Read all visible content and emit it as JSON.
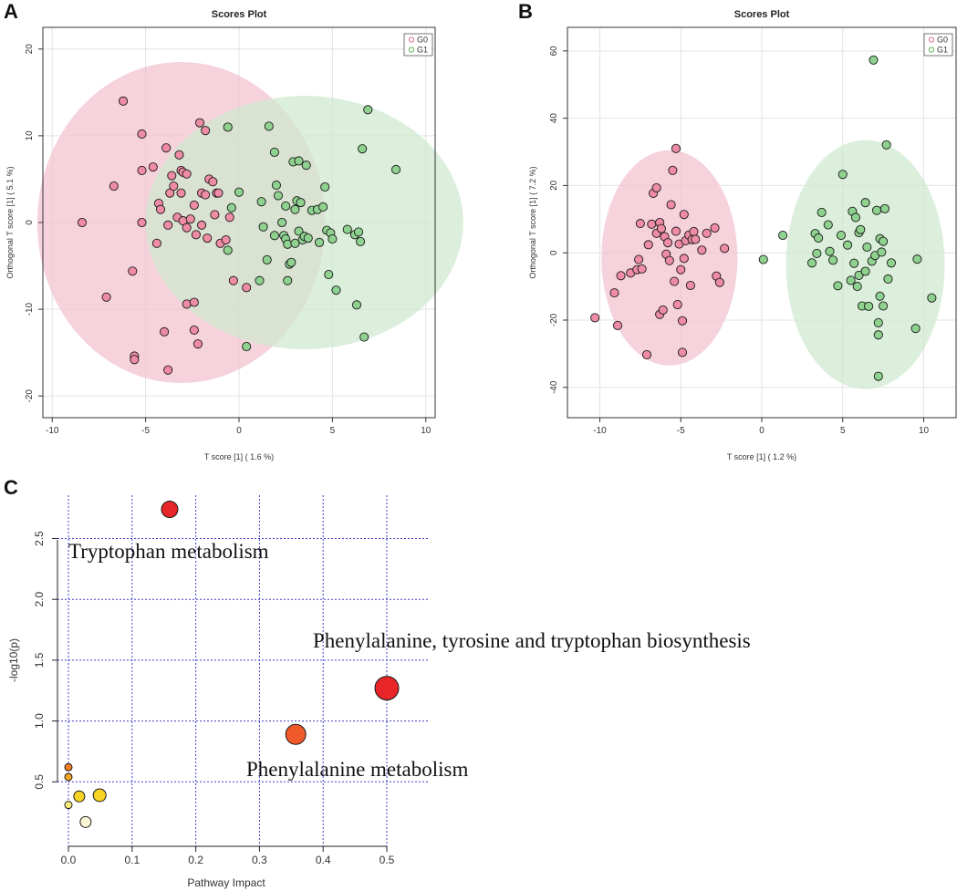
{
  "chart_data": [
    {
      "panel": "A",
      "type": "scatter",
      "title": "Scores Plot",
      "xlabel": "T score [1] ( 1.6 %)",
      "ylabel": "Orthogonal T score [1] ( 5.1 %)",
      "xlim": [
        -10.5,
        10.5
      ],
      "ylim": [
        -22.5,
        22.5
      ],
      "xticks": [
        -10,
        -5,
        0,
        5,
        10
      ],
      "yticks": [
        -20,
        -10,
        0,
        10,
        20
      ],
      "grid": true,
      "legend": {
        "position": "top-right",
        "entries": [
          "G0",
          "G1"
        ]
      },
      "colors": {
        "G0": "#e06b8c",
        "G1": "#5cb85c",
        "G0_fill": "#ee8ba5",
        "G1_fill": "#8fd18f",
        "G0_ellipse": "#f2c2cf",
        "G1_ellipse": "#cfe8cf"
      },
      "ellipses": [
        {
          "name": "G0",
          "cx": -3.1,
          "cy": 0.0,
          "rx": 7.7,
          "ry": 18.5
        },
        {
          "name": "G1",
          "cx": 3.5,
          "cy": 0.0,
          "rx": 8.5,
          "ry": 14.6
        }
      ],
      "series": [
        {
          "name": "G0",
          "points": [
            [
              -8.4,
              0.0
            ],
            [
              -6.2,
              14.0
            ],
            [
              -6.7,
              4.2
            ],
            [
              -7.1,
              -8.6
            ],
            [
              -5.7,
              -5.6
            ],
            [
              -5.6,
              -15.4
            ],
            [
              -5.6,
              -15.8
            ],
            [
              -5.2,
              10.2
            ],
            [
              -5.2,
              6.0
            ],
            [
              -5.2,
              0.0
            ],
            [
              -4.6,
              6.4
            ],
            [
              -4.4,
              -2.4
            ],
            [
              -4.3,
              2.2
            ],
            [
              -4.2,
              1.5
            ],
            [
              -4.0,
              -12.6
            ],
            [
              -3.9,
              8.6
            ],
            [
              -3.8,
              -17.0
            ],
            [
              -3.8,
              -0.3
            ],
            [
              -3.7,
              3.4
            ],
            [
              -3.6,
              5.4
            ],
            [
              -3.5,
              4.2
            ],
            [
              -3.3,
              0.6
            ],
            [
              -3.2,
              7.8
            ],
            [
              -3.1,
              6.0
            ],
            [
              -3.1,
              3.4
            ],
            [
              -3.0,
              5.8
            ],
            [
              -3.0,
              0.2
            ],
            [
              -2.8,
              5.6
            ],
            [
              -2.8,
              -0.6
            ],
            [
              -2.8,
              -9.4
            ],
            [
              -2.6,
              0.4
            ],
            [
              -2.4,
              -9.2
            ],
            [
              -2.4,
              -12.4
            ],
            [
              -2.4,
              2.0
            ],
            [
              -2.3,
              -1.4
            ],
            [
              -2.2,
              -14.0
            ],
            [
              -2.1,
              11.5
            ],
            [
              -2.0,
              3.4
            ],
            [
              -2.0,
              -0.3
            ],
            [
              -1.8,
              3.2
            ],
            [
              -1.8,
              10.6
            ],
            [
              -1.7,
              -1.8
            ],
            [
              -1.6,
              5.0
            ],
            [
              -1.4,
              4.7
            ],
            [
              -1.3,
              0.9
            ],
            [
              -1.2,
              3.4
            ],
            [
              -1.1,
              3.4
            ],
            [
              -1.0,
              -2.4
            ],
            [
              -0.7,
              -2.0
            ],
            [
              -0.5,
              0.6
            ],
            [
              -0.3,
              -6.7
            ],
            [
              0.4,
              -7.5
            ]
          ]
        },
        {
          "name": "G1",
          "points": [
            [
              -0.6,
              11.0
            ],
            [
              -0.6,
              -3.2
            ],
            [
              -0.4,
              1.7
            ],
            [
              0.0,
              3.5
            ],
            [
              0.4,
              -14.3
            ],
            [
              1.1,
              -6.7
            ],
            [
              1.2,
              2.4
            ],
            [
              1.3,
              -0.5
            ],
            [
              1.5,
              -4.3
            ],
            [
              1.6,
              11.1
            ],
            [
              1.9,
              8.1
            ],
            [
              1.9,
              -1.5
            ],
            [
              2.0,
              4.3
            ],
            [
              2.1,
              3.1
            ],
            [
              2.3,
              0.0
            ],
            [
              2.4,
              -1.5
            ],
            [
              2.5,
              -1.9
            ],
            [
              2.5,
              1.9
            ],
            [
              2.6,
              -2.5
            ],
            [
              2.6,
              -6.7
            ],
            [
              2.7,
              -4.8
            ],
            [
              2.8,
              -4.6
            ],
            [
              2.9,
              7.0
            ],
            [
              3.0,
              1.5
            ],
            [
              3.0,
              -2.4
            ],
            [
              3.1,
              2.5
            ],
            [
              3.2,
              7.1
            ],
            [
              3.2,
              -1.0
            ],
            [
              3.3,
              2.3
            ],
            [
              3.4,
              -2.0
            ],
            [
              3.5,
              -1.6
            ],
            [
              3.6,
              6.6
            ],
            [
              3.7,
              -1.8
            ],
            [
              3.9,
              1.4
            ],
            [
              4.2,
              1.5
            ],
            [
              4.3,
              -2.3
            ],
            [
              4.5,
              1.8
            ],
            [
              4.6,
              4.1
            ],
            [
              4.7,
              -0.9
            ],
            [
              4.8,
              -6.0
            ],
            [
              4.9,
              -1.2
            ],
            [
              5.0,
              -1.9
            ],
            [
              5.2,
              -7.8
            ],
            [
              5.8,
              -0.8
            ],
            [
              6.2,
              -1.4
            ],
            [
              6.3,
              -9.5
            ],
            [
              6.4,
              -1.1
            ],
            [
              6.5,
              -2.2
            ],
            [
              6.6,
              8.5
            ],
            [
              6.7,
              -13.2
            ],
            [
              6.9,
              13.0
            ],
            [
              8.4,
              6.1
            ]
          ]
        }
      ]
    },
    {
      "panel": "B",
      "type": "scatter",
      "title": "Scores Plot",
      "xlabel": "T score [1] ( 1.2 %)",
      "ylabel": "Orthogonal T score [1] ( 7.2 %)",
      "xlim": [
        -12,
        12
      ],
      "ylim": [
        -49,
        67
      ],
      "xticks": [
        -10,
        -5,
        0,
        5,
        10
      ],
      "yticks": [
        -40,
        -20,
        0,
        20,
        40,
        60
      ],
      "grid": true,
      "legend": {
        "position": "top-right",
        "entries": [
          "G0",
          "G1"
        ]
      },
      "colors": {
        "G0": "#e06b8c",
        "G1": "#5cb85c",
        "G0_fill": "#ee8ba5",
        "G1_fill": "#8fd18f",
        "G0_ellipse": "#f2c2cf",
        "G1_ellipse": "#cfe8cf"
      },
      "ellipses": [
        {
          "name": "G0",
          "cx": -5.7,
          "cy": -1.5,
          "rx": 4.2,
          "ry": 32.0
        },
        {
          "name": "G1",
          "cx": 6.4,
          "cy": -3.5,
          "rx": 4.9,
          "ry": 37.0
        }
      ],
      "series": [
        {
          "name": "G0",
          "points": [
            [
              -10.3,
              -19.3
            ],
            [
              -9.1,
              -11.9
            ],
            [
              -8.9,
              -21.6
            ],
            [
              -8.7,
              -6.8
            ],
            [
              -8.1,
              -6.0
            ],
            [
              -7.7,
              -5.0
            ],
            [
              -7.6,
              -2.0
            ],
            [
              -7.5,
              8.7
            ],
            [
              -7.4,
              -4.8
            ],
            [
              -7.1,
              -30.3
            ],
            [
              -7.0,
              2.4
            ],
            [
              -6.8,
              8.5
            ],
            [
              -6.7,
              17.7
            ],
            [
              -6.5,
              19.3
            ],
            [
              -6.5,
              5.8
            ],
            [
              -6.3,
              -18.3
            ],
            [
              -6.3,
              9.0
            ],
            [
              -6.2,
              7.2
            ],
            [
              -6.1,
              -17.0
            ],
            [
              -6.0,
              4.8
            ],
            [
              -5.9,
              -0.4
            ],
            [
              -5.8,
              3.0
            ],
            [
              -5.7,
              -2.3
            ],
            [
              -5.6,
              14.3
            ],
            [
              -5.5,
              24.5
            ],
            [
              -5.4,
              -8.5
            ],
            [
              -5.3,
              6.4
            ],
            [
              -5.3,
              31.0
            ],
            [
              -5.2,
              -15.4
            ],
            [
              -5.1,
              2.6
            ],
            [
              -5.0,
              -5.0
            ],
            [
              -4.9,
              -20.2
            ],
            [
              -4.9,
              -29.6
            ],
            [
              -4.8,
              11.4
            ],
            [
              -4.8,
              -1.7
            ],
            [
              -4.7,
              3.6
            ],
            [
              -4.5,
              5.3
            ],
            [
              -4.4,
              -9.7
            ],
            [
              -4.3,
              3.9
            ],
            [
              -4.2,
              6.3
            ],
            [
              -4.1,
              4.0
            ],
            [
              -3.7,
              0.8
            ],
            [
              -3.4,
              5.8
            ],
            [
              -2.9,
              7.4
            ],
            [
              -2.8,
              -6.9
            ],
            [
              -2.6,
              -8.8
            ],
            [
              -2.3,
              1.3
            ]
          ]
        },
        {
          "name": "G1",
          "points": [
            [
              0.1,
              -2.0
            ],
            [
              1.3,
              5.2
            ],
            [
              3.1,
              -3.0
            ],
            [
              3.3,
              5.7
            ],
            [
              3.4,
              -0.2
            ],
            [
              3.5,
              4.4
            ],
            [
              3.7,
              12.0
            ],
            [
              4.1,
              8.3
            ],
            [
              4.2,
              0.4
            ],
            [
              4.4,
              -2.2
            ],
            [
              4.7,
              -9.8
            ],
            [
              4.9,
              5.2
            ],
            [
              5.0,
              23.3
            ],
            [
              5.3,
              2.3
            ],
            [
              5.5,
              -8.2
            ],
            [
              5.6,
              12.3
            ],
            [
              5.7,
              -3.1
            ],
            [
              5.8,
              10.5
            ],
            [
              5.9,
              -10.0
            ],
            [
              6.0,
              6.0
            ],
            [
              6.0,
              -6.7
            ],
            [
              6.1,
              6.9
            ],
            [
              6.2,
              -15.8
            ],
            [
              6.4,
              14.9
            ],
            [
              6.4,
              -5.5
            ],
            [
              6.5,
              1.7
            ],
            [
              6.6,
              -15.9
            ],
            [
              6.8,
              -2.5
            ],
            [
              6.9,
              57.3
            ],
            [
              7.0,
              -0.8
            ],
            [
              7.1,
              12.6
            ],
            [
              7.2,
              -20.8
            ],
            [
              7.2,
              -36.7
            ],
            [
              7.2,
              -24.4
            ],
            [
              7.3,
              4.2
            ],
            [
              7.3,
              -12.9
            ],
            [
              7.4,
              0.2
            ],
            [
              7.5,
              -15.8
            ],
            [
              7.5,
              3.4
            ],
            [
              7.6,
              13.1
            ],
            [
              7.7,
              32.1
            ],
            [
              7.8,
              -7.8
            ],
            [
              8.0,
              -3.0
            ],
            [
              9.5,
              -22.5
            ],
            [
              9.6,
              -1.9
            ],
            [
              10.5,
              -13.4
            ]
          ]
        }
      ]
    },
    {
      "panel": "C",
      "type": "scatter",
      "subtype": "bubble",
      "title": "",
      "xlabel": "Pathway Impact",
      "ylabel": "-log10(p)",
      "xlim": [
        -0.005,
        0.515
      ],
      "ylim": [
        0.05,
        2.95
      ],
      "xticks": [
        "0.0",
        "0.1",
        "0.2",
        "0.3",
        "0.4",
        "0.5"
      ],
      "yticks": [
        "0.5",
        "1.0",
        "1.5",
        "2.0",
        "2.5"
      ],
      "grid": true,
      "points": [
        {
          "x": 0.159,
          "y": 2.74,
          "size": 9,
          "color": "#e8262a"
        },
        {
          "x": 0.5,
          "y": 1.27,
          "size": 13,
          "color": "#e8262a"
        },
        {
          "x": 0.357,
          "y": 0.89,
          "size": 11,
          "color": "#f05a2a"
        },
        {
          "x": 0.0,
          "y": 0.62,
          "size": 4,
          "color": "#f27d22"
        },
        {
          "x": 0.0,
          "y": 0.54,
          "size": 4,
          "color": "#f4a524"
        },
        {
          "x": 0.049,
          "y": 0.39,
          "size": 7,
          "color": "#f7d324"
        },
        {
          "x": 0.017,
          "y": 0.38,
          "size": 6,
          "color": "#f7d324"
        },
        {
          "x": 0.0,
          "y": 0.31,
          "size": 4,
          "color": "#faec7a"
        },
        {
          "x": 0.027,
          "y": 0.17,
          "size": 6,
          "color": "#fbf7d6"
        }
      ],
      "annotations": [
        "Tryptophan metabolism",
        "Phenylalanine, tyrosine and tryptophan biosynthesis",
        "Phenylalanine metabolism"
      ]
    }
  ]
}
